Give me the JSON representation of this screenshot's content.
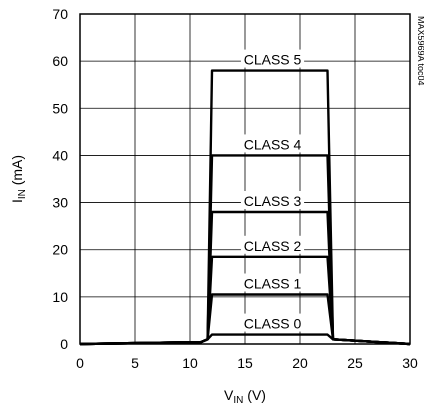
{
  "chart_data": {
    "type": "line",
    "title": "",
    "xlabel": {
      "main": "V",
      "sub": "IN",
      "unit": " (V)"
    },
    "ylabel": {
      "main": "I",
      "sub": "IN",
      "unit": " (mA)"
    },
    "xlim": [
      0,
      30
    ],
    "ylim": [
      0,
      70
    ],
    "xticks": [
      0,
      5,
      10,
      15,
      20,
      25,
      30
    ],
    "yticks": [
      0,
      10,
      20,
      30,
      40,
      50,
      60,
      70
    ],
    "grid": true,
    "tag": "MAX5969A toc04",
    "series": [
      {
        "name": "CLASS 0",
        "label_x": 17.5,
        "points": [
          [
            0,
            0
          ],
          [
            11,
            0.4
          ],
          [
            11.6,
            1
          ],
          [
            12,
            2
          ],
          [
            22.5,
            2
          ],
          [
            23,
            1
          ],
          [
            30,
            0
          ]
        ]
      },
      {
        "name": "CLASS 1",
        "label_x": 17.5,
        "points": [
          [
            0,
            0
          ],
          [
            11,
            0.4
          ],
          [
            11.6,
            1
          ],
          [
            12,
            10.5
          ],
          [
            22.5,
            10.5
          ],
          [
            23,
            1
          ],
          [
            30,
            0
          ]
        ]
      },
      {
        "name": "CLASS 2",
        "label_x": 17.5,
        "points": [
          [
            0,
            0
          ],
          [
            11,
            0.4
          ],
          [
            11.6,
            1
          ],
          [
            12,
            18.5
          ],
          [
            22.5,
            18.5
          ],
          [
            23,
            1
          ],
          [
            30,
            0
          ]
        ]
      },
      {
        "name": "CLASS 3",
        "label_x": 17.5,
        "points": [
          [
            0,
            0
          ],
          [
            11,
            0.4
          ],
          [
            11.6,
            1
          ],
          [
            12,
            28
          ],
          [
            22.5,
            28
          ],
          [
            23,
            1
          ],
          [
            30,
            0
          ]
        ]
      },
      {
        "name": "CLASS 4",
        "label_x": 17.5,
        "points": [
          [
            0,
            0
          ],
          [
            11,
            0.4
          ],
          [
            11.6,
            1
          ],
          [
            12,
            40
          ],
          [
            22.5,
            40
          ],
          [
            23,
            1
          ],
          [
            30,
            0
          ]
        ]
      },
      {
        "name": "CLASS 5",
        "label_x": 17.5,
        "points": [
          [
            0,
            0
          ],
          [
            11,
            0.4
          ],
          [
            11.6,
            1
          ],
          [
            12,
            58
          ],
          [
            22.5,
            58
          ],
          [
            23,
            1
          ],
          [
            30,
            0
          ]
        ]
      }
    ]
  }
}
